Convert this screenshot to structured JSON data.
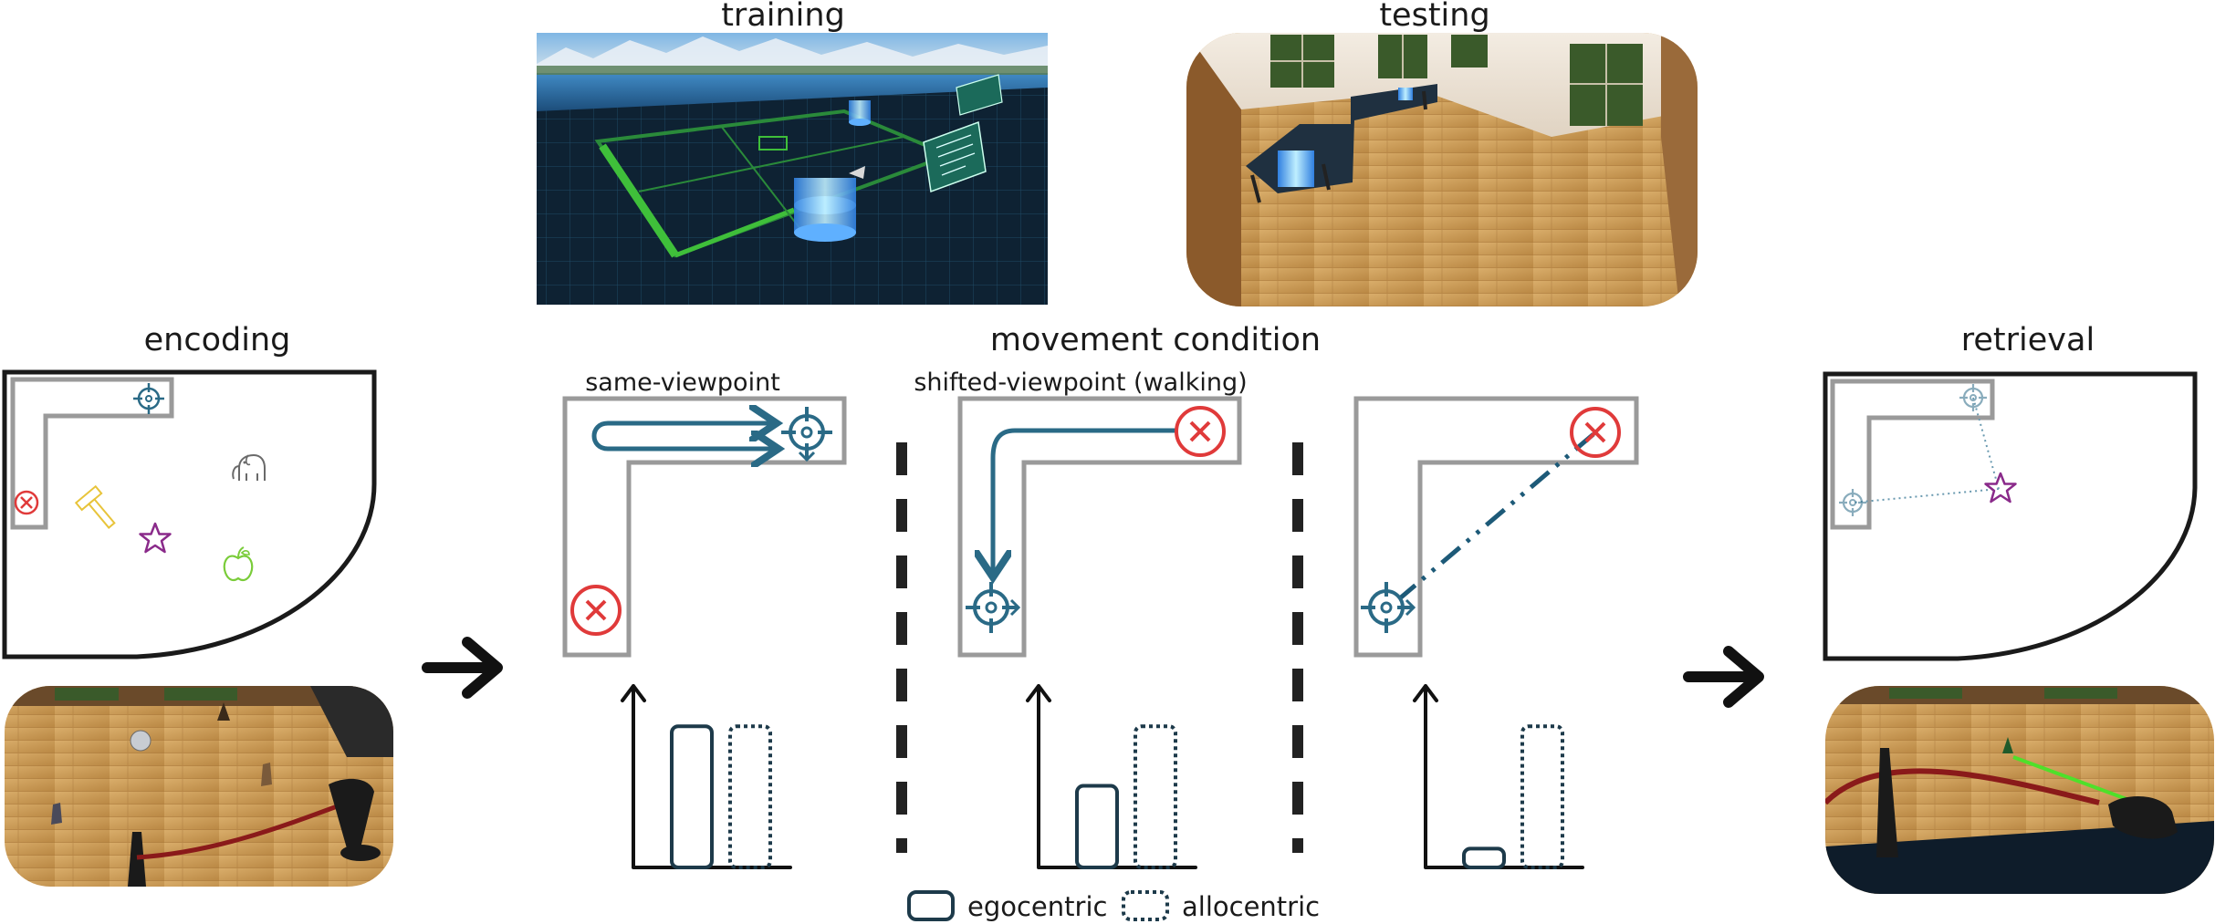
{
  "titles": {
    "training": "training",
    "testing": "testing",
    "encoding": "encoding",
    "movement": "movement condition",
    "retrieval": "retrieval"
  },
  "conditions": {
    "same": "same-viewpoint",
    "shifted": "shifted-viewpoint (walking)"
  },
  "legend": {
    "egocentric": "egocentric",
    "allocentric": "allocentric"
  },
  "bar_levels": {
    "panel1": {
      "egocentric": 0.9,
      "allocentric": 0.9
    },
    "panel2": {
      "egocentric": 0.52,
      "allocentric": 0.9
    },
    "panel3": {
      "egocentric": 0.12,
      "allocentric": 0.9
    }
  },
  "colors": {
    "path": "#2a6a86",
    "cross": "#e03a3a",
    "room": "#9a9a9a",
    "bar": "#1d3a4a",
    "star": "#8a2a8a",
    "hammer": "#e8c43a",
    "apple": "#7acc3a",
    "elephant": "#6a6a6a"
  },
  "icons": [
    "target-icon",
    "cross-icon",
    "star-icon",
    "hammer-icon",
    "apple-icon",
    "elephant-icon",
    "arrow-right-icon"
  ]
}
